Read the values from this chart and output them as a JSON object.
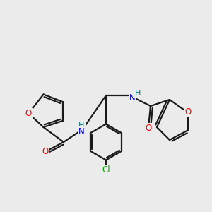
{
  "background_color": "#ebebeb",
  "bond_color": "#1a1a1a",
  "atom_colors": {
    "O": "#ff0000",
    "N": "#0000cc",
    "C": "#1a1a1a",
    "Cl": "#00aa00",
    "H": "#007070"
  },
  "figsize": [
    3.0,
    3.0
  ],
  "dpi": 100
}
